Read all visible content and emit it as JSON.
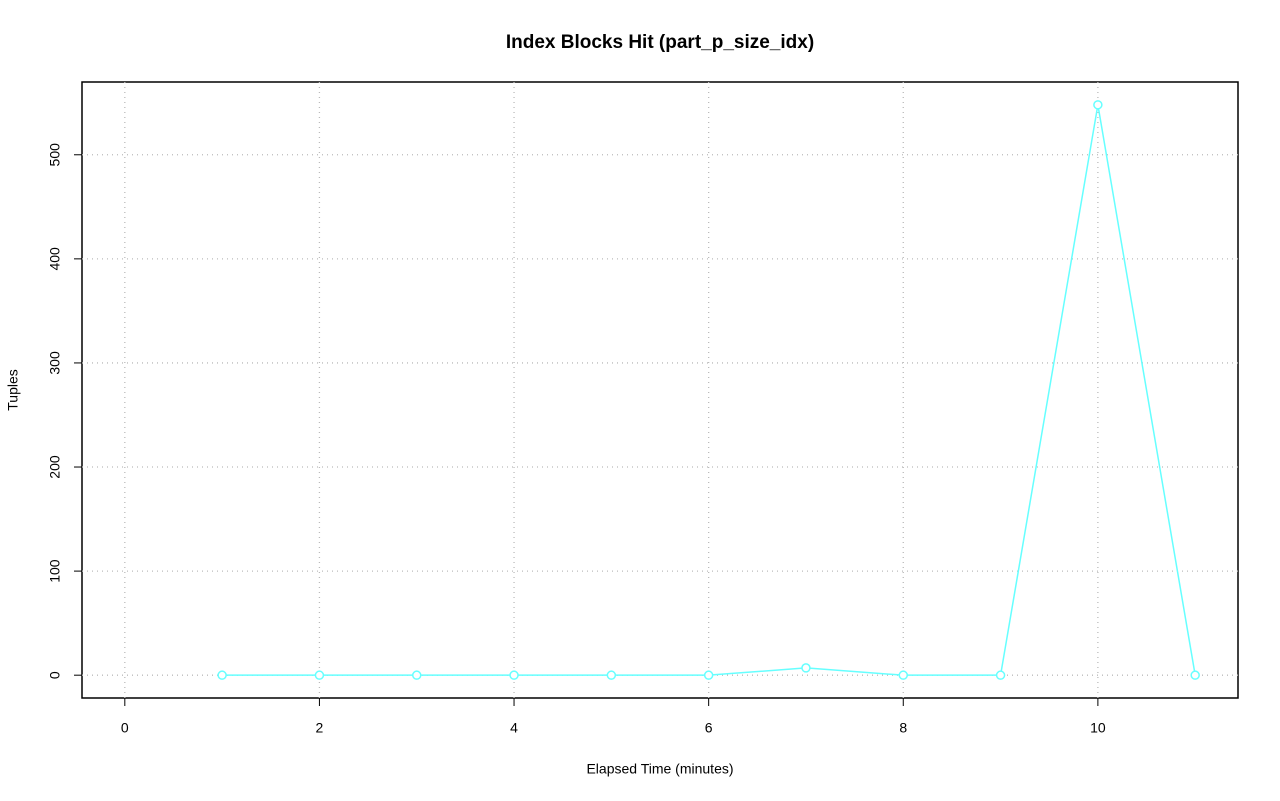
{
  "chart_data": {
    "type": "line",
    "title": "Index Blocks Hit (part_p_size_idx)",
    "x_label": "Elapsed Time (minutes)",
    "y_label": "Tuples",
    "x": [
      1,
      2,
      3,
      4,
      5,
      6,
      7,
      8,
      9,
      10,
      11
    ],
    "series": [
      {
        "name": "part_p_size_idx",
        "color": "#66ffff",
        "values": [
          0,
          0,
          0,
          0,
          0,
          0,
          7,
          0,
          0,
          548,
          0
        ]
      }
    ],
    "xlim": [
      -0.44,
      11.44
    ],
    "ylim": [
      -21.92,
      569.92
    ],
    "xticks": [
      0,
      2,
      4,
      6,
      8,
      10
    ],
    "yticks": [
      0,
      100,
      200,
      300,
      400,
      500
    ],
    "grid": true
  }
}
